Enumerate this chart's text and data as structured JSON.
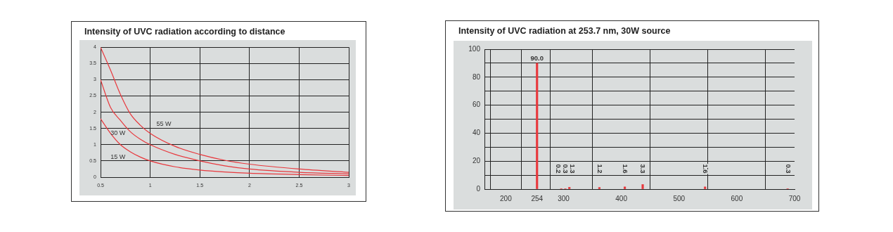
{
  "chart_data": [
    {
      "type": "line",
      "title": "Intensity of UVC radiation according to distance",
      "x": [
        0.5,
        0.6,
        0.7,
        0.8,
        0.9,
        1,
        1.25,
        1.5,
        1.75,
        2,
        2.5,
        3
      ],
      "series": [
        {
          "name": "55 W",
          "color": "#e8383d",
          "values": [
            4.0,
            3.3,
            2.55,
            1.95,
            1.6,
            1.35,
            0.95,
            0.7,
            0.52,
            0.4,
            0.25,
            0.15
          ]
        },
        {
          "name": "30 W",
          "color": "#e8383d",
          "values": [
            3.0,
            2.15,
            1.75,
            1.4,
            1.17,
            1.0,
            0.7,
            0.5,
            0.35,
            0.25,
            0.15,
            0.1
          ]
        },
        {
          "name": "15 W",
          "color": "#e8383d",
          "values": [
            1.8,
            1.35,
            1.0,
            0.78,
            0.62,
            0.5,
            0.32,
            0.22,
            0.16,
            0.12,
            0.08,
            0.05
          ]
        }
      ],
      "xlim": [
        0.5,
        3
      ],
      "xticks": [
        0.5,
        1,
        1.5,
        2,
        2.5,
        3
      ],
      "ylim": [
        0,
        4
      ],
      "yticks": [
        0,
        0.5,
        1,
        1.5,
        2,
        2.5,
        3,
        3.5,
        4
      ],
      "grid": true,
      "legend": false,
      "marker": "none",
      "line_style": "solid"
    },
    {
      "type": "bar",
      "title": "Intensity of UVC radiation at 253.7 nm, 30W source",
      "x": [
        254,
        296,
        303,
        310,
        362,
        406,
        437,
        545,
        688
      ],
      "values": [
        90,
        0.2,
        0.3,
        1.3,
        1.2,
        1.6,
        3.3,
        1.6,
        0.3
      ],
      "color": "#e8383d",
      "value_labels": [
        "90.0",
        "0.2",
        "0.3",
        "1.3",
        "1.2",
        "1.6",
        "3.3",
        "1.6",
        "0.3"
      ],
      "xlim": [
        163,
        700
      ],
      "xticks": [
        200,
        254,
        300,
        400,
        500,
        600,
        700
      ],
      "ylim": [
        0,
        100
      ],
      "yticks": [
        0,
        {
          "value": 10,
          "label": null
        },
        20,
        {
          "value": 30,
          "label": null
        },
        40,
        {
          "value": 50,
          "label": null
        },
        60,
        {
          "value": 70,
          "label": null
        },
        80,
        {
          "value": 90,
          "label": null
        },
        100
      ],
      "grid": true,
      "legend": false
    }
  ]
}
